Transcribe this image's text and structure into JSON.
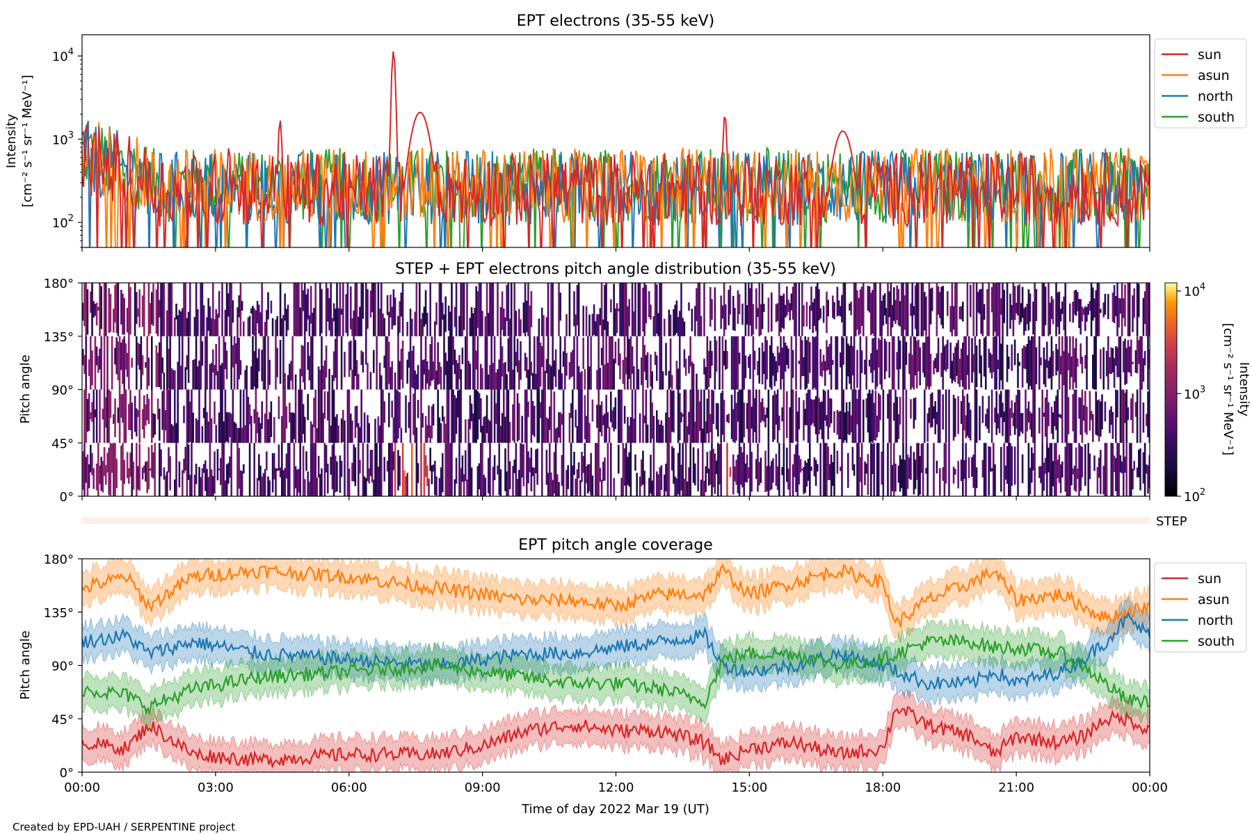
{
  "footer": "Created by EPD-UAH / SERPENTINE project",
  "xlabel": "Time of day 2022 Mar 19 (UT)",
  "x_ticks": [
    "00:00",
    "03:00",
    "06:00",
    "09:00",
    "12:00",
    "15:00",
    "18:00",
    "21:00",
    "00:00"
  ],
  "step_strip_label": "STEP",
  "colors": {
    "sun": "#d62728",
    "asun": "#ff7f0e",
    "north": "#1f77b4",
    "south": "#2ca02c"
  },
  "chart_data": [
    {
      "type": "line",
      "title": "EPT electrons (35-55 keV)",
      "ylabel_line1": "Intensity",
      "ylabel_line2": "[cm⁻² s⁻¹ sr⁻¹ MeV⁻¹]",
      "yscale": "log",
      "ylim": [
        50,
        18000
      ],
      "y_ticks": [
        {
          "base": "10",
          "exp": "2",
          "value": 100
        },
        {
          "base": "10",
          "exp": "3",
          "value": 1000
        },
        {
          "base": "10",
          "exp": "4",
          "value": 10000
        }
      ],
      "xlim_hours": [
        0,
        24
      ],
      "legend": [
        "sun",
        "asun",
        "north",
        "south"
      ],
      "legend_position": "outside right",
      "series": [
        {
          "name": "sun",
          "baseline": 250,
          "peaks": [
            {
              "t": 0.1,
              "v": 1500
            },
            {
              "t": 3.3,
              "v": 800
            },
            {
              "t": 4.45,
              "v": 1700
            },
            {
              "t": 7.0,
              "v": 11500
            },
            {
              "t": 7.6,
              "v": 2100
            },
            {
              "t": 14.45,
              "v": 2000
            },
            {
              "t": 17.1,
              "v": 1250
            }
          ]
        },
        {
          "name": "asun",
          "baseline": 280,
          "peaks": []
        },
        {
          "name": "north",
          "baseline": 260,
          "peaks": []
        },
        {
          "name": "south",
          "baseline": 280,
          "peaks": []
        }
      ]
    },
    {
      "type": "heatmap",
      "title": "STEP + EPT electrons pitch angle distribution (35-55 keV)",
      "ylabel": "Pitch angle",
      "ylim": [
        0,
        180
      ],
      "y_ticks": [
        "0°",
        "45°",
        "90°",
        "135°",
        "180°"
      ],
      "colorbar": {
        "scale": "log",
        "range": [
          100,
          12000
        ],
        "ticks": [
          {
            "base": "10",
            "exp": "2"
          },
          {
            "base": "10",
            "exp": "3"
          },
          {
            "base": "10",
            "exp": "4"
          }
        ],
        "label_line1": "Intensity",
        "label_line2": "[cm⁻² s⁻¹ sr⁻¹ MeV⁻¹]",
        "colormap": "inferno"
      }
    },
    {
      "type": "line",
      "title": "EPT pitch angle coverage",
      "ylabel": "Pitch angle",
      "ylim": [
        0,
        180
      ],
      "y_ticks": [
        "0°",
        "45°",
        "90°",
        "135°",
        "180°"
      ],
      "xlim_hours": [
        0,
        24
      ],
      "legend": [
        "sun",
        "asun",
        "north",
        "south"
      ],
      "legend_position": "outside right",
      "series": [
        {
          "name": "sun",
          "x": [
            0,
            1,
            1.5,
            2.5,
            4,
            6,
            8,
            9,
            10,
            11,
            12,
            13,
            14,
            14.4,
            15,
            16,
            17,
            18,
            18.3,
            19,
            20,
            20.5,
            21,
            22,
            22.5,
            23,
            23.5,
            24
          ],
          "y": [
            25,
            20,
            40,
            15,
            10,
            15,
            15,
            22,
            35,
            40,
            35,
            35,
            25,
            10,
            20,
            25,
            15,
            20,
            55,
            40,
            30,
            15,
            30,
            25,
            30,
            45,
            45,
            35
          ]
        },
        {
          "name": "asun",
          "x": [
            0,
            1,
            1.5,
            2.5,
            4,
            6,
            8,
            9,
            10,
            11,
            12,
            13,
            14,
            14.4,
            15,
            16,
            17,
            18,
            18.3,
            19,
            20,
            20.5,
            21,
            22,
            22.5,
            23,
            23.5,
            24
          ],
          "y": [
            155,
            165,
            140,
            165,
            170,
            165,
            155,
            150,
            145,
            145,
            140,
            150,
            150,
            170,
            150,
            160,
            170,
            160,
            125,
            145,
            160,
            170,
            145,
            150,
            140,
            130,
            135,
            140
          ]
        },
        {
          "name": "north",
          "x": [
            0,
            1,
            1.5,
            2.5,
            4,
            6,
            8,
            9,
            10,
            11,
            12,
            13,
            14,
            14.4,
            15,
            16,
            17,
            18,
            18.3,
            19,
            20,
            20.5,
            21,
            22,
            22.5,
            23,
            23.5,
            24
          ],
          "y": [
            110,
            115,
            100,
            110,
            100,
            95,
            90,
            95,
            100,
            100,
            105,
            110,
            115,
            90,
            85,
            90,
            100,
            90,
            85,
            75,
            75,
            85,
            75,
            85,
            95,
            110,
            130,
            115
          ]
        },
        {
          "name": "south",
          "x": [
            0,
            1,
            1.5,
            2.5,
            4,
            6,
            8,
            9,
            10,
            11,
            12,
            13,
            14,
            14.4,
            15,
            16,
            17,
            18,
            18.3,
            19,
            20,
            20.5,
            21,
            22,
            22.5,
            23,
            23.5,
            24
          ],
          "y": [
            70,
            65,
            55,
            70,
            80,
            85,
            90,
            85,
            80,
            75,
            75,
            70,
            60,
            95,
            100,
            100,
            90,
            95,
            100,
            110,
            110,
            105,
            105,
            100,
            90,
            75,
            60,
            60
          ]
        }
      ]
    }
  ]
}
